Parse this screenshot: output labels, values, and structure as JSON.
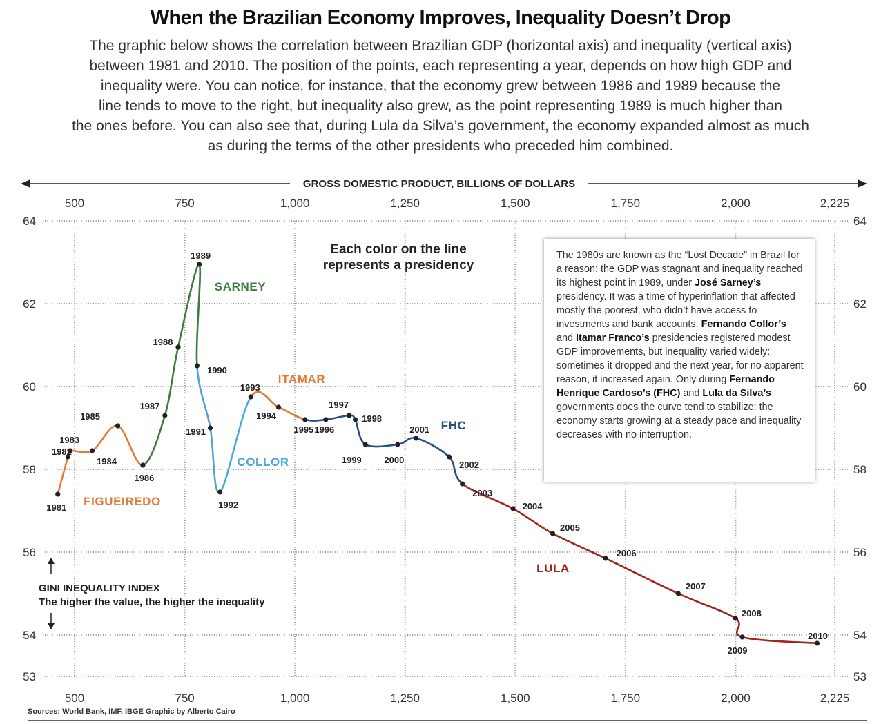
{
  "title": "When the Brazilian Economy Improves, Inequality Doesn’t Drop",
  "intro": {
    "lines": [
      "The graphic below shows the correlation between Brazilian GDP (horizontal axis) and inequality (vertical axis)",
      "between 1981 and 2010. The position of the points, each representing a year, depends on how high GDP and",
      "inequality were. You can notice, for instance, that the economy grew between 1986 and 1989 because the",
      "line tends to move to the right, but inequality also grew, as the point representing 1989 is much higher than",
      "the ones before. You can also see that, during Lula da Silva’s government, the economy expanded almost as much",
      "as during the terms of the other presidents who preceded him combined."
    ]
  },
  "chart_data": {
    "type": "line",
    "title": "When the Brazilian Economy Improves, Inequality Doesn’t Drop",
    "xlabel": "GROSS DOMESTIC PRODUCT, BILLIONS OF DOLLARS",
    "ylabel": "GINI INEQUALITY INDEX",
    "ylabel_sub": "The higher the value, the higher the inequality",
    "xlim": [
      500,
      2225
    ],
    "ylim": [
      53,
      64
    ],
    "xticks": [
      500,
      750,
      1000,
      1250,
      1500,
      1750,
      2000,
      2225
    ],
    "xtick_labels": [
      "500",
      "750",
      "1,000",
      "1,250",
      "1,500",
      "1,750",
      "2,000",
      "2,225"
    ],
    "yticks": [
      53,
      54,
      56,
      58,
      60,
      62,
      64
    ],
    "ytick_labels": [
      "53",
      "54",
      "56",
      "58",
      "60",
      "62",
      "64"
    ],
    "grid": true,
    "annotation": [
      "Each color on the line",
      "represents a presidency"
    ],
    "points": [
      {
        "year": "1981",
        "x": 462,
        "y": 57.4
      },
      {
        "year": "1982",
        "x": 485,
        "y": 58.3
      },
      {
        "year": "1983",
        "x": 490,
        "y": 58.45
      },
      {
        "year": "1984",
        "x": 540,
        "y": 58.45
      },
      {
        "year": "1985",
        "x": 598,
        "y": 59.05
      },
      {
        "year": "1986",
        "x": 655,
        "y": 58.1
      },
      {
        "year": "1987",
        "x": 705,
        "y": 59.3
      },
      {
        "year": "1988",
        "x": 735,
        "y": 60.95
      },
      {
        "year": "1989",
        "x": 783,
        "y": 62.95
      },
      {
        "year": "1990",
        "x": 778,
        "y": 60.5
      },
      {
        "year": "1991",
        "x": 808,
        "y": 59.0
      },
      {
        "year": "1992",
        "x": 830,
        "y": 57.45
      },
      {
        "year": "1993",
        "x": 900,
        "y": 59.75
      },
      {
        "year": "1994",
        "x": 963,
        "y": 59.5
      },
      {
        "year": "1995",
        "x": 1023,
        "y": 59.2
      },
      {
        "year": "1996",
        "x": 1070,
        "y": 59.2
      },
      {
        "year": "1997",
        "x": 1123,
        "y": 59.3
      },
      {
        "year": "1998",
        "x": 1137,
        "y": 59.2
      },
      {
        "year": "1999",
        "x": 1160,
        "y": 58.6
      },
      {
        "year": "2000",
        "x": 1233,
        "y": 58.6
      },
      {
        "year": "2001",
        "x": 1275,
        "y": 58.75
      },
      {
        "year": "2002",
        "x": 1350,
        "y": 58.3
      },
      {
        "year": "2003",
        "x": 1380,
        "y": 57.65
      },
      {
        "year": "2004",
        "x": 1495,
        "y": 57.05
      },
      {
        "year": "2005",
        "x": 1585,
        "y": 56.45
      },
      {
        "year": "2006",
        "x": 1705,
        "y": 55.85
      },
      {
        "year": "2007",
        "x": 1870,
        "y": 55.0
      },
      {
        "year": "2008",
        "x": 2000,
        "y": 54.4
      },
      {
        "year": "2009",
        "x": 2015,
        "y": 53.95
      },
      {
        "year": "2010",
        "x": 2185,
        "y": 53.8
      }
    ],
    "series": [
      {
        "name": "FIGUEIREDO",
        "color": "#e07b39",
        "from": 0,
        "to": 5
      },
      {
        "name": "SARNEY",
        "color": "#3f7a3e",
        "from": 5,
        "to": 9
      },
      {
        "name": "COLLOR",
        "color": "#4ea6d8",
        "from": 9,
        "to": 12
      },
      {
        "name": "ITAMAR",
        "color": "#e07b39",
        "from": 12,
        "to": 14
      },
      {
        "name": "FHC",
        "color": "#2a4f86",
        "from": 14,
        "to": 22
      },
      {
        "name": "LULA",
        "color": "#a02418",
        "from": 22,
        "to": 29
      }
    ]
  },
  "note": {
    "p1": "The 1980s are known as the “Lost Decade” in Brazil for a reason: the GDP was stagnant and inequality reached its highest point in 1989, under ",
    "b1": "José Sarney’s",
    "p2": " presidency. It was a time of hyperinflation that affected mostly the poorest, who didn’t have access to investments and bank accounts. ",
    "b2": "Fernando Collor’s",
    "p3": " and ",
    "b3": "Itamar Franco’s",
    "p4": " presidencies registered modest GDP improvements, but inequality varied widely: sometimes it dropped and the next year, for no apparent reason, it increased again. Only during ",
    "b4": "Fernando Henrique Cardoso’s (FHC)",
    "p5": " and ",
    "b5": "Lula da Silva’s",
    "p6": " governments does the curve tend to stabilize: the economy starts growing at a steady pace and inequality decreases with no interruption."
  },
  "sources": "Sources: World Bank, IMF, IBGE   Graphic by Alberto Cairo"
}
